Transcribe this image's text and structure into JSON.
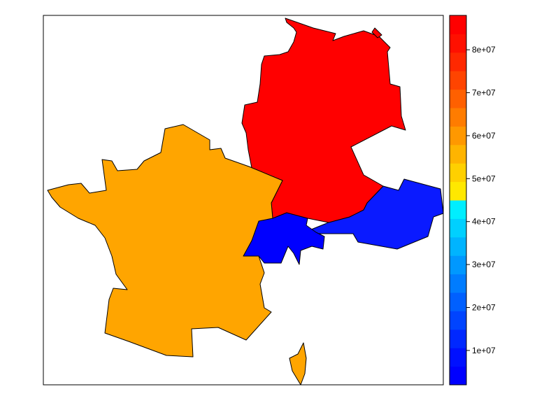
{
  "map": {
    "regions": [
      {
        "name": "France",
        "value": 62000000,
        "color": "#ffa500"
      },
      {
        "name": "Germany",
        "value": 82000000,
        "color": "#ff0000"
      },
      {
        "name": "Switzerland",
        "value": 7500000,
        "color": "#0000ff"
      },
      {
        "name": "Austria",
        "value": 8200000,
        "color": "#0a1aff"
      }
    ]
  },
  "legend": {
    "ticks": [
      {
        "label": "1e+07",
        "value": 10000000
      },
      {
        "label": "2e+07",
        "value": 20000000
      },
      {
        "label": "3e+07",
        "value": 30000000
      },
      {
        "label": "4e+07",
        "value": 40000000
      },
      {
        "label": "5e+07",
        "value": 50000000
      },
      {
        "label": "6e+07",
        "value": 60000000
      },
      {
        "label": "7e+07",
        "value": 70000000
      },
      {
        "label": "8e+07",
        "value": 80000000
      }
    ],
    "range": [
      2000000,
      88000000
    ],
    "colors": [
      "#0000ff",
      "#0010ff",
      "#0028ff",
      "#0044ff",
      "#0060ff",
      "#007cff",
      "#0098ff",
      "#00b4ff",
      "#00d0ff",
      "#00eeff",
      "#ffe800",
      "#ffd000",
      "#ffb400",
      "#ff9800",
      "#ff7c00",
      "#ff6000",
      "#ff4400",
      "#ff2800",
      "#ff1000",
      "#ff0000"
    ]
  }
}
